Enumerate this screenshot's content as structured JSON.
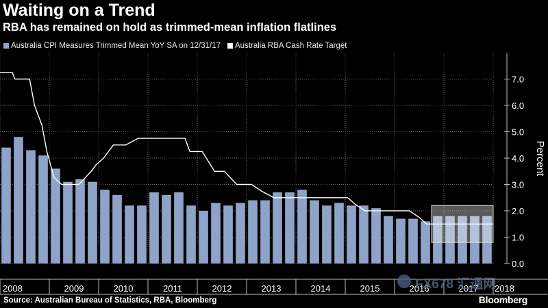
{
  "header": {
    "title": "Waiting on a Trend",
    "subtitle": "RBA has remained on hold as trimmed-mean inflation flatlines"
  },
  "legend": {
    "series1": "Australia CPI Measures Trimmed Mean YoY SA  on 12/31/17",
    "series2": "Australia RBA Cash Rate Target"
  },
  "footer": {
    "source": "Source: Australian Bureau of Statistics, RBA, Bloomberg",
    "brand": "Bloomberg",
    "watermark": "FX678 汇通网"
  },
  "colors": {
    "bar": "#8ea3c7",
    "line": "#ffffff",
    "grid": "#666666",
    "background": "#000000"
  },
  "chart_data": {
    "type": "bar",
    "title": "Waiting on a Trend",
    "subtitle": "RBA has remained on hold as trimmed-mean inflation flatlines",
    "ylabel": "Percent",
    "ylim": [
      0,
      7.5
    ],
    "yticks": [
      0,
      1,
      2,
      3,
      4,
      5,
      6,
      7
    ],
    "ytick_labels": [
      "0.0",
      "1.0",
      "2.0",
      "3.0",
      "4.0",
      "5.0",
      "6.0",
      "7.0"
    ],
    "xlim": [
      2008.0,
      2018.0
    ],
    "year_labels": [
      "2008",
      "2009",
      "2010",
      "2011",
      "2012",
      "2013",
      "2014",
      "2015",
      "2016",
      "2017",
      "2018"
    ],
    "bar_series": {
      "name": "Australia CPI Measures Trimmed Mean YoY SA  on 12/31/17",
      "quarters": [
        "2008Q1",
        "2008Q2",
        "2008Q3",
        "2008Q4",
        "2009Q1",
        "2009Q2",
        "2009Q3",
        "2009Q4",
        "2010Q1",
        "2010Q2",
        "2010Q3",
        "2010Q4",
        "2011Q1",
        "2011Q2",
        "2011Q3",
        "2011Q4",
        "2012Q1",
        "2012Q2",
        "2012Q3",
        "2012Q4",
        "2013Q1",
        "2013Q2",
        "2013Q3",
        "2013Q4",
        "2014Q1",
        "2014Q2",
        "2014Q3",
        "2014Q4",
        "2015Q1",
        "2015Q2",
        "2015Q3",
        "2015Q4",
        "2016Q1",
        "2016Q2",
        "2016Q3",
        "2016Q4",
        "2017Q1",
        "2017Q2",
        "2017Q3",
        "2017Q4"
      ],
      "values": [
        4.4,
        4.8,
        4.3,
        4.1,
        3.6,
        3.1,
        3.2,
        3.1,
        2.8,
        2.6,
        2.2,
        2.2,
        2.7,
        2.6,
        2.7,
        2.2,
        2.0,
        2.3,
        2.2,
        2.3,
        2.4,
        2.4,
        2.7,
        2.7,
        2.8,
        2.4,
        2.2,
        2.3,
        2.2,
        2.2,
        2.1,
        1.8,
        1.7,
        1.7,
        1.6,
        1.8,
        1.8,
        1.8,
        1.8,
        1.8
      ]
    },
    "line_series": {
      "name": "Australia RBA Cash Rate Target",
      "points": [
        [
          2008.0,
          7.25
        ],
        [
          2008.25,
          7.25
        ],
        [
          2008.3,
          7.0
        ],
        [
          2008.6,
          7.0
        ],
        [
          2008.7,
          6.0
        ],
        [
          2008.85,
          5.25
        ],
        [
          2008.95,
          4.25
        ],
        [
          2009.1,
          3.25
        ],
        [
          2009.25,
          3.0
        ],
        [
          2009.6,
          3.0
        ],
        [
          2009.85,
          3.5
        ],
        [
          2009.95,
          3.75
        ],
        [
          2010.1,
          4.0
        ],
        [
          2010.3,
          4.5
        ],
        [
          2010.55,
          4.5
        ],
        [
          2010.8,
          4.75
        ],
        [
          2011.25,
          4.75
        ],
        [
          2011.75,
          4.75
        ],
        [
          2011.85,
          4.25
        ],
        [
          2012.1,
          4.25
        ],
        [
          2012.35,
          3.5
        ],
        [
          2012.55,
          3.5
        ],
        [
          2012.8,
          3.0
        ],
        [
          2013.1,
          3.0
        ],
        [
          2013.3,
          2.75
        ],
        [
          2013.55,
          2.5
        ],
        [
          2014.0,
          2.5
        ],
        [
          2015.05,
          2.5
        ],
        [
          2015.2,
          2.25
        ],
        [
          2015.4,
          2.0
        ],
        [
          2016.3,
          2.0
        ],
        [
          2016.5,
          1.75
        ],
        [
          2016.65,
          1.5
        ],
        [
          2018.0,
          1.5
        ]
      ]
    },
    "highlight_box": {
      "x_range": [
        2016.75,
        2018.0
      ],
      "y_range": [
        0.8,
        2.2
      ]
    }
  }
}
